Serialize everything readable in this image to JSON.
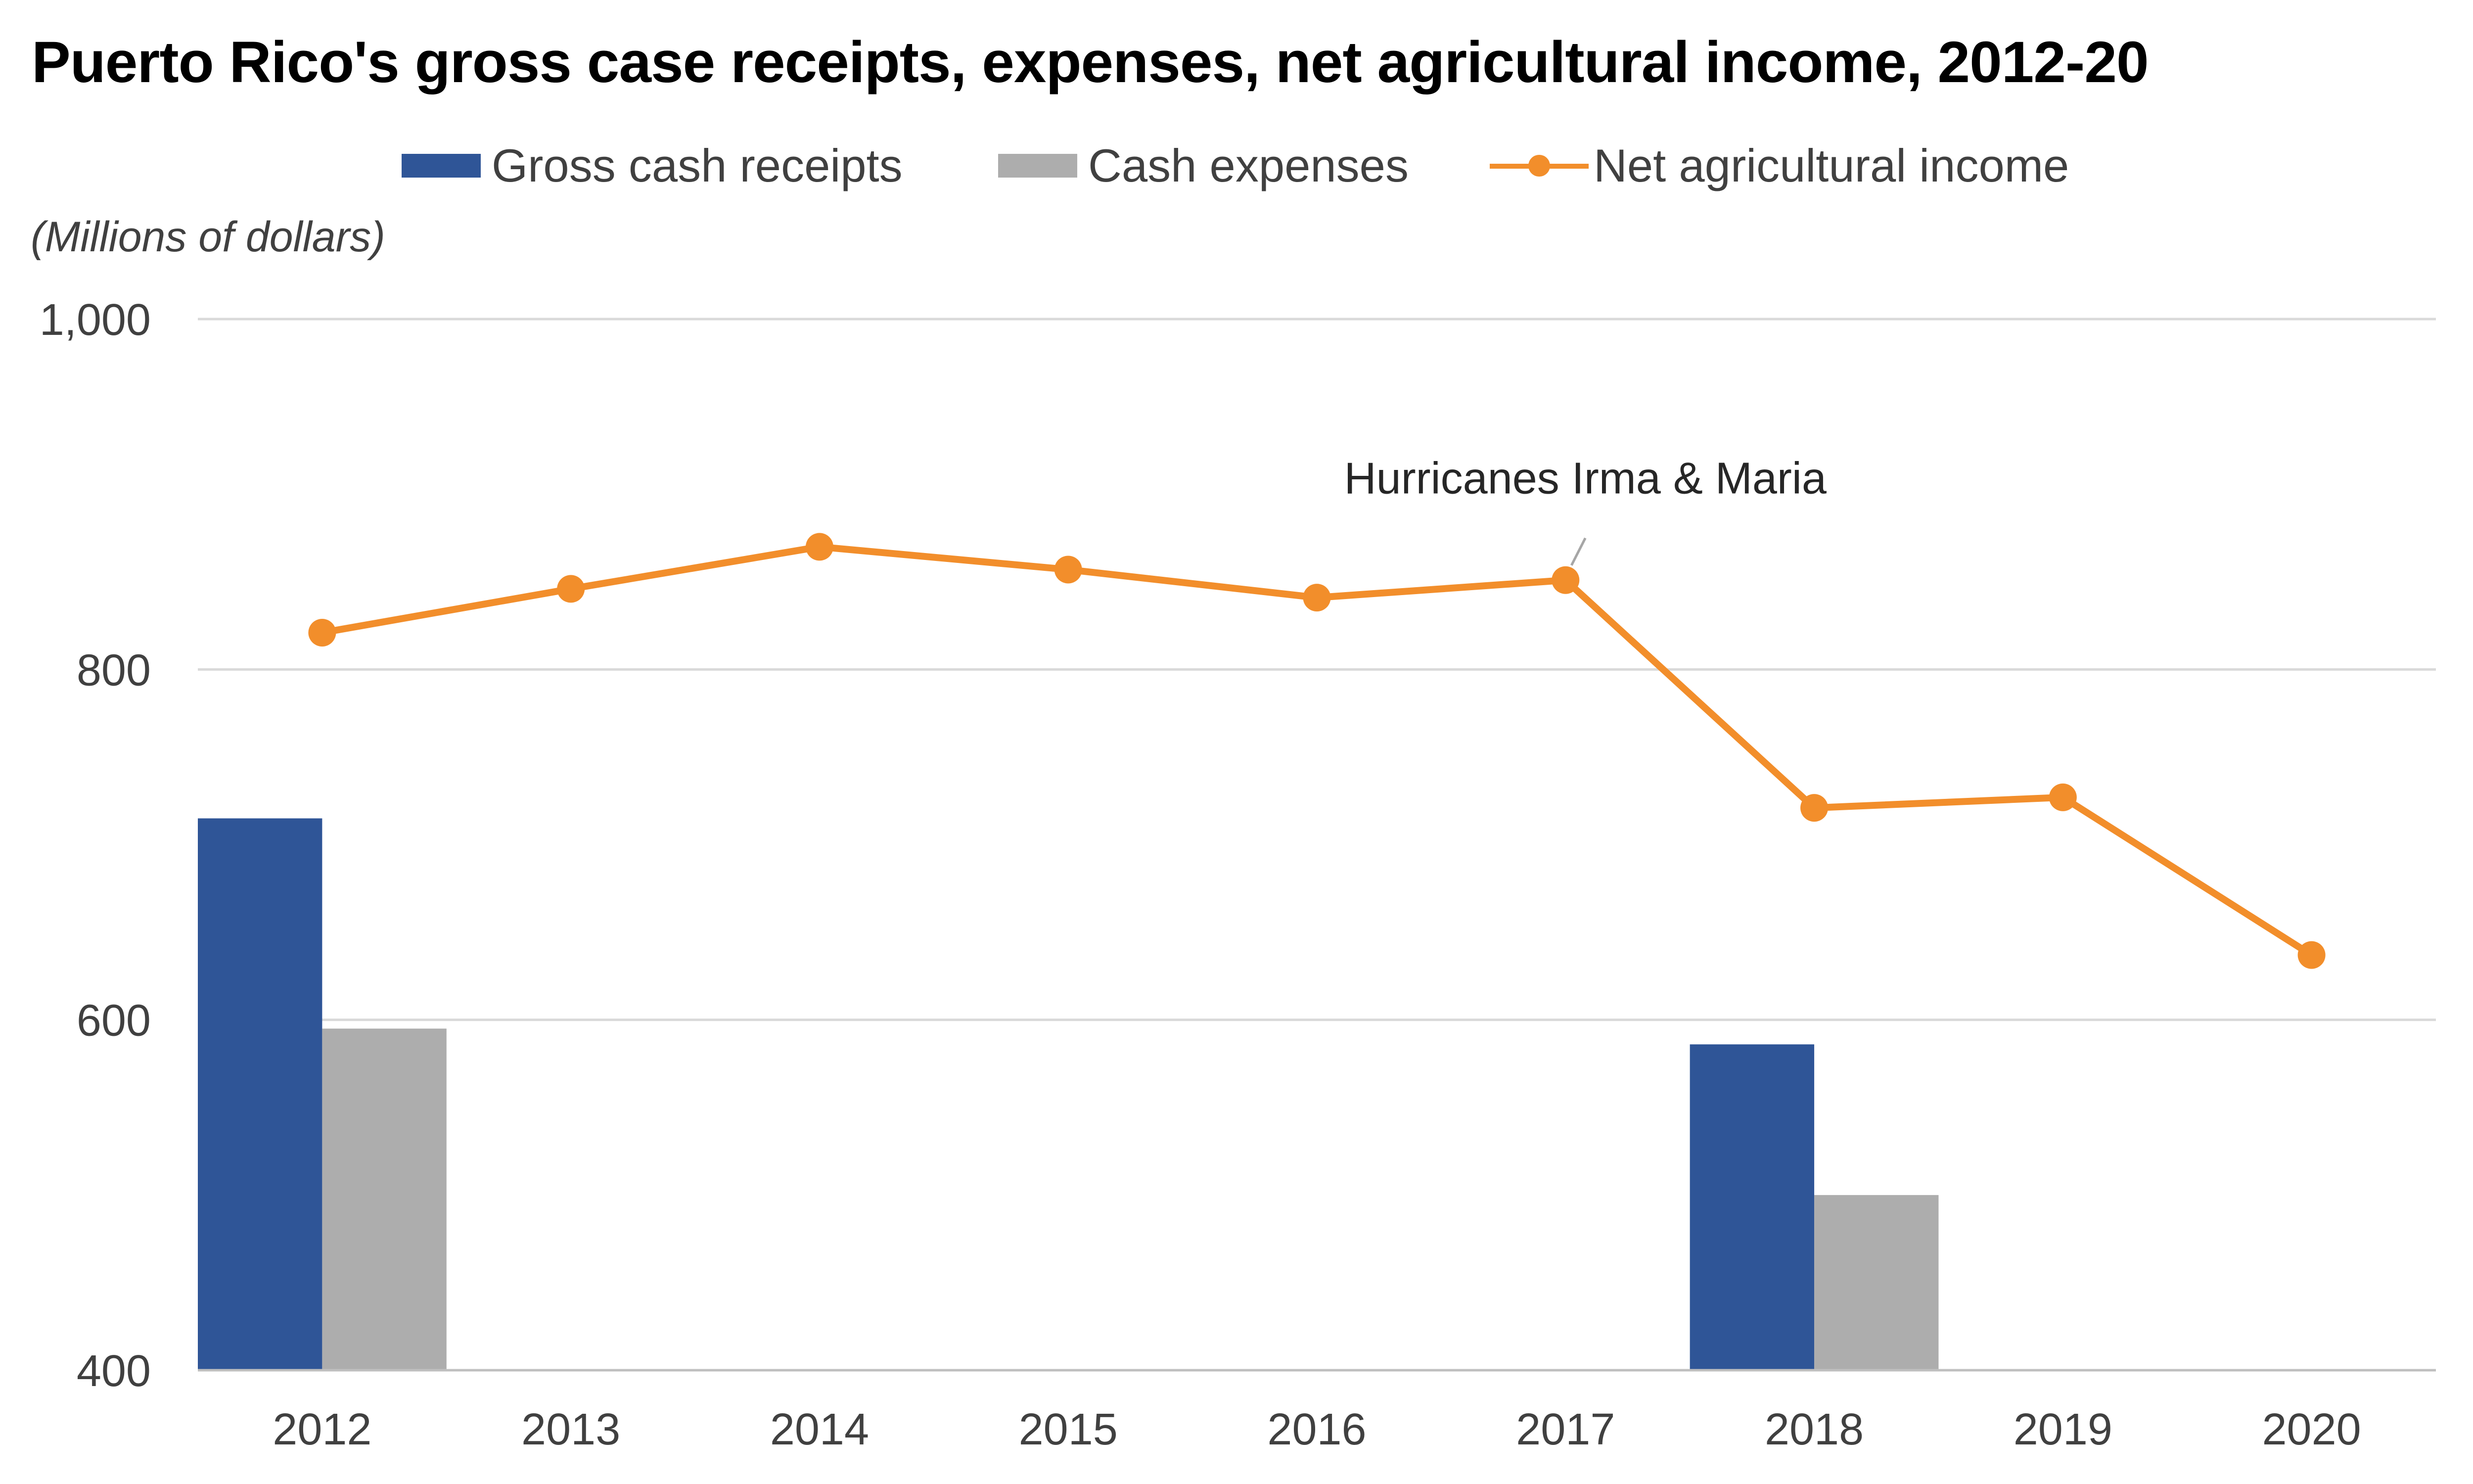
{
  "chart_data": {
    "type": "bar",
    "title": "Puerto Rico's gross case receipts, expenses, net agricultural income, 2012-20",
    "ylabel": "(Millions of dollars)",
    "xlabel": "",
    "ylim": [
      400,
      1000
    ],
    "yticks": [
      400,
      600,
      800,
      1000
    ],
    "ytick_labels": [
      "400",
      "600",
      "800",
      "1,000"
    ],
    "grid": true,
    "legend_position": "top",
    "categories": [
      "2012",
      "2013",
      "2014",
      "2015",
      "2016",
      "2017",
      "2018",
      "2019",
      "2020"
    ],
    "series": [
      {
        "name": "Gross cash receipts",
        "type": "bar",
        "color": "#2F5597",
        "values": [
          715,
          null,
          null,
          null,
          null,
          null,
          586,
          null,
          null
        ]
      },
      {
        "name": "Cash expenses",
        "type": "bar",
        "color": "#ADADAD",
        "values": [
          595,
          null,
          null,
          null,
          null,
          null,
          500,
          null,
          null
        ]
      },
      {
        "name": "Net agricultural income",
        "type": "line",
        "color": "#F28E2B",
        "values": [
          821,
          846,
          870,
          857,
          841,
          851,
          721,
          727,
          637
        ]
      }
    ],
    "annotations": [
      {
        "text": "Hurricanes Irma & Maria",
        "category": "2017",
        "series": "Net agricultural income"
      }
    ]
  }
}
